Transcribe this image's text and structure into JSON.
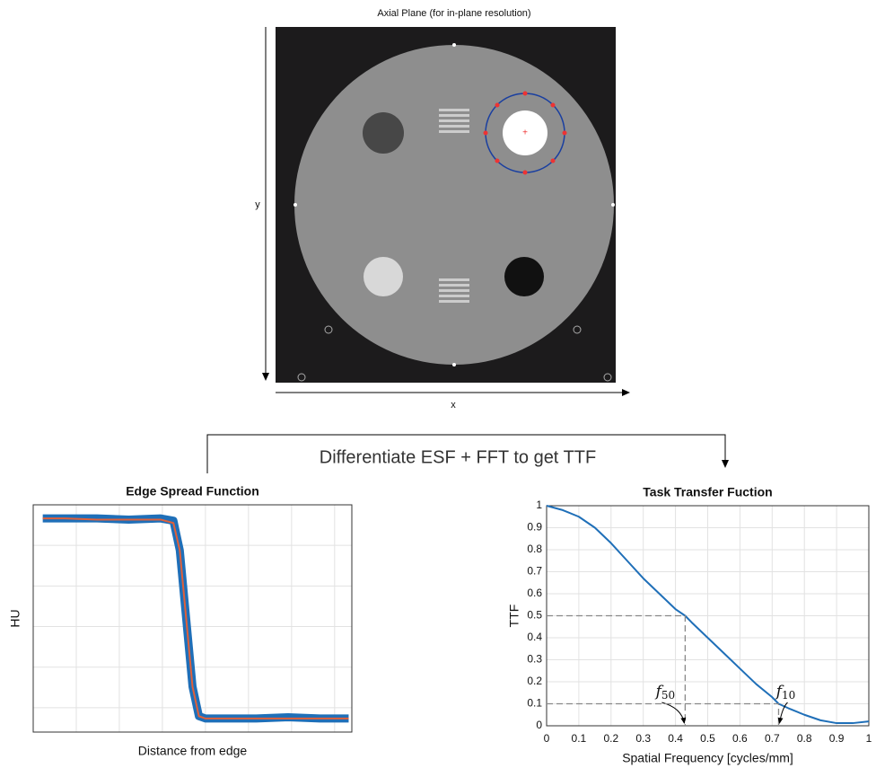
{
  "phantom": {
    "title": "Axial Plane (for in-plane resolution)",
    "xlabel": "x",
    "ylabel": "y"
  },
  "caption": "Differentiate ESF + FFT to get TTF",
  "chart_data": [
    {
      "type": "line",
      "title": "Edge Spread Function",
      "xlabel": "Distance from edge",
      "ylabel": "HU",
      "xlim": [
        0,
        1
      ],
      "ylim": [
        0,
        1
      ],
      "grid": true,
      "x": [
        0.03,
        0.1,
        0.2,
        0.3,
        0.4,
        0.44,
        0.46,
        0.48,
        0.5,
        0.52,
        0.54,
        0.6,
        0.7,
        0.8,
        0.9,
        0.99
      ],
      "series": [
        {
          "color": "#1f6fb8",
          "values": [
            0.94,
            0.94,
            0.94,
            0.935,
            0.94,
            0.93,
            0.8,
            0.5,
            0.2,
            0.07,
            0.06,
            0.06,
            0.06,
            0.065,
            0.06,
            0.06
          ]
        },
        {
          "color": "#e0603a",
          "values": [
            0.94,
            0.94,
            0.935,
            0.935,
            0.935,
            0.92,
            0.8,
            0.5,
            0.2,
            0.07,
            0.06,
            0.06,
            0.06,
            0.06,
            0.06,
            0.06
          ]
        }
      ]
    },
    {
      "type": "line",
      "title": "Task Transfer Fuction",
      "xlabel": "Spatial Frequency [cycles/mm]",
      "ylabel": "TTF",
      "xlim": [
        0,
        1
      ],
      "ylim": [
        0,
        1
      ],
      "grid": true,
      "xticks": [
        0,
        0.1,
        0.2,
        0.3,
        0.4,
        0.5,
        0.6,
        0.7,
        0.8,
        0.9,
        1
      ],
      "yticks": [
        0,
        0.1,
        0.2,
        0.3,
        0.4,
        0.5,
        0.6,
        0.7,
        0.8,
        0.9,
        1
      ],
      "x": [
        0,
        0.05,
        0.1,
        0.15,
        0.2,
        0.25,
        0.3,
        0.35,
        0.4,
        0.43,
        0.45,
        0.5,
        0.55,
        0.6,
        0.65,
        0.7,
        0.72,
        0.75,
        0.8,
        0.85,
        0.9,
        0.95,
        1
      ],
      "series": [
        {
          "color": "#1f6fb8",
          "values": [
            1,
            0.98,
            0.95,
            0.9,
            0.83,
            0.75,
            0.67,
            0.6,
            0.53,
            0.5,
            0.47,
            0.4,
            0.33,
            0.26,
            0.19,
            0.13,
            0.1,
            0.08,
            0.05,
            0.025,
            0.012,
            0.012,
            0.02
          ]
        }
      ],
      "annotations": [
        {
          "text": "f",
          "sub": "50",
          "x": 0.43,
          "y": 0.5
        },
        {
          "text": "f",
          "sub": "10",
          "x": 0.72,
          "y": 0.1
        }
      ]
    }
  ]
}
